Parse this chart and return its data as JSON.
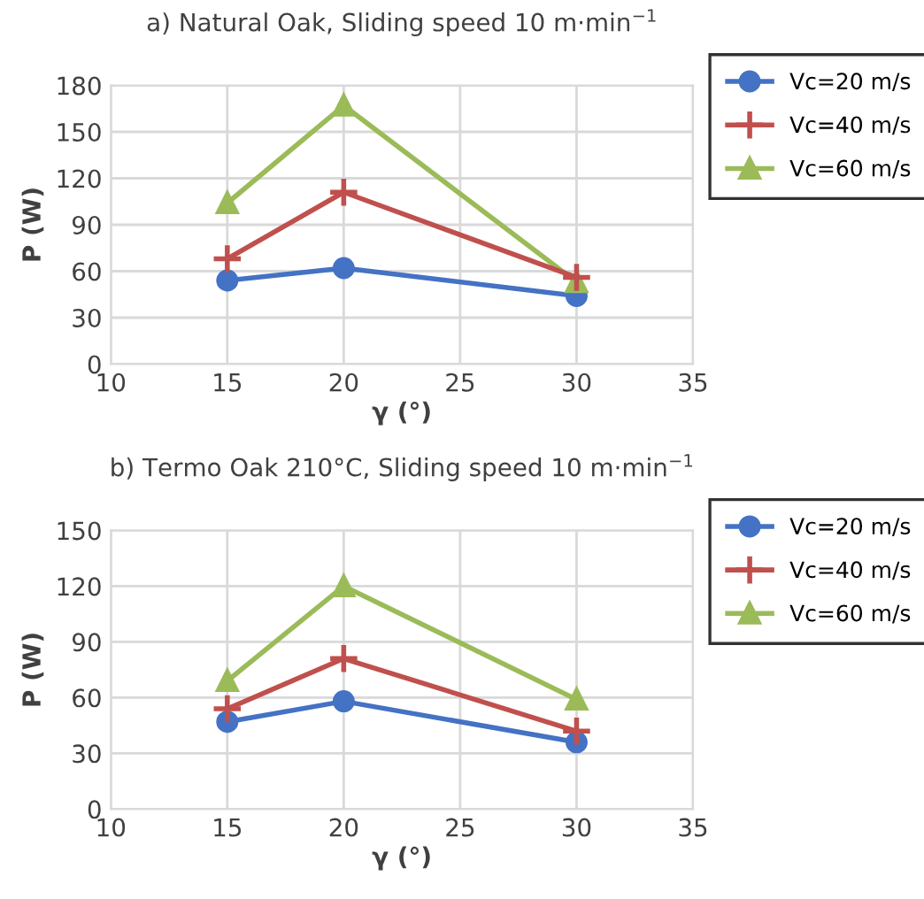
{
  "chart_data": [
    {
      "type": "line",
      "title": "a) Natural Oak, Sliding speed 10 m·min$^{−1}$",
      "xlabel": "γ (°)",
      "ylabel": "P (W)",
      "x": [
        15,
        20,
        30
      ],
      "series": [
        {
          "name": "Vc=20 m/s",
          "color": "#4472c4",
          "marker": "circle",
          "values": [
            54,
            62,
            44
          ]
        },
        {
          "name": "Vc=40 m/s",
          "color": "#c0504d",
          "marker": "cross",
          "values": [
            68,
            111,
            56
          ]
        },
        {
          "name": "Vc=60 m/s",
          "color": "#9bbb59",
          "marker": "triangle",
          "values": [
            104,
            167,
            53
          ]
        }
      ],
      "xlim": [
        10,
        35
      ],
      "xticks": [
        10,
        15,
        20,
        25,
        30,
        35
      ],
      "ylim": [
        0,
        180
      ],
      "yticks": [
        0,
        30,
        60,
        90,
        120,
        150,
        180
      ],
      "grid": true,
      "legend": "top right",
      "line_style": "solid"
    },
    {
      "type": "line",
      "title": "b) Termo Oak 210°C, Sliding speed 10 m·min$^{−1}$",
      "xlabel": "γ (°)",
      "ylabel": "P (W)",
      "x": [
        15,
        20,
        30
      ],
      "series": [
        {
          "name": "Vc=20 m/s",
          "color": "#4472c4",
          "marker": "circle",
          "values": [
            47,
            58,
            36
          ]
        },
        {
          "name": "Vc=40 m/s",
          "color": "#c0504d",
          "marker": "cross",
          "values": [
            54,
            81,
            42
          ]
        },
        {
          "name": "Vc=60 m/s",
          "color": "#9bbb59",
          "marker": "triangle",
          "values": [
            69,
            120,
            59
          ]
        }
      ],
      "xlim": [
        10,
        35
      ],
      "xticks": [
        10,
        15,
        20,
        25,
        30,
        35
      ],
      "ylim": [
        0,
        150
      ],
      "yticks": [
        0,
        30,
        60,
        90,
        120,
        150
      ],
      "grid": true,
      "legend": "top right",
      "line_style": "solid"
    }
  ]
}
